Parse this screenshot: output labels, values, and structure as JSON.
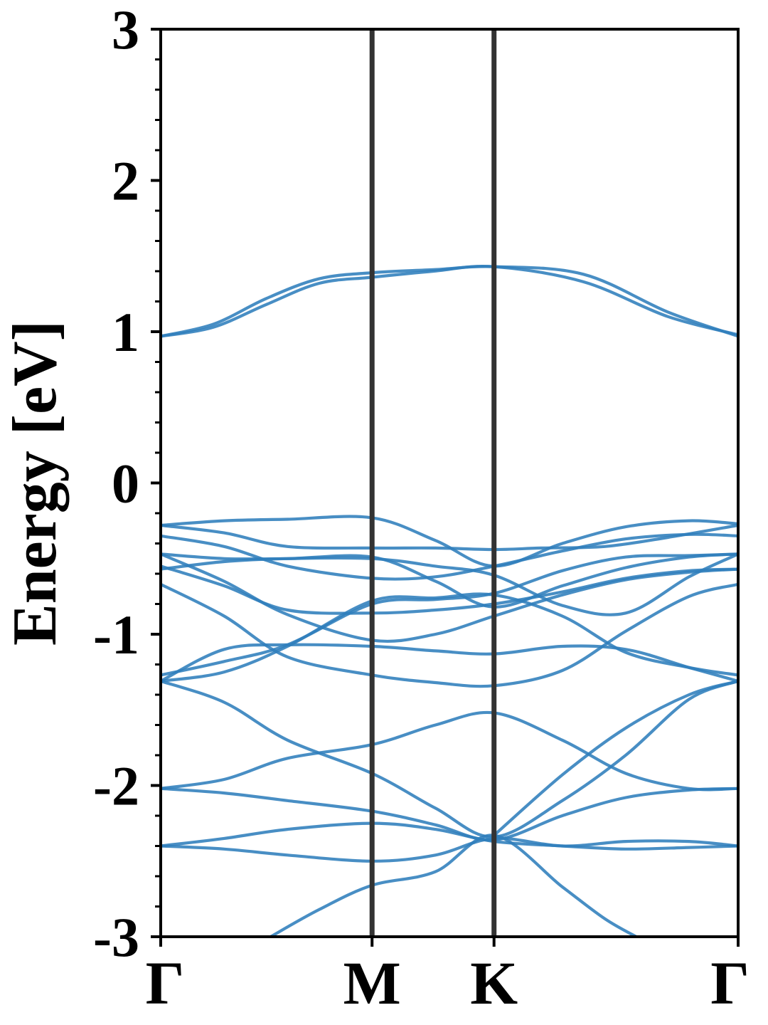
{
  "chart_data": {
    "type": "line",
    "ylabel": "Energy [eV]",
    "ylim": [
      -3,
      3
    ],
    "yticks": [
      "3",
      "2",
      "1",
      "0",
      "-1",
      "-2",
      "-3"
    ],
    "ytick_values": [
      3,
      2,
      1,
      0,
      -1,
      -2,
      -3
    ],
    "xlim": [
      0,
      2.732
    ],
    "high_symmetry_points": [
      {
        "label": "Γ",
        "x": 0
      },
      {
        "label": "M",
        "x": 1.0
      },
      {
        "label": "K",
        "x": 1.577
      },
      {
        "label": "Γ",
        "x": 2.732
      }
    ],
    "band_color": "#2f7ebc",
    "divider_color": "#333333",
    "series": [
      {
        "x": [
          0,
          0.25,
          0.5,
          0.75,
          1.0,
          1.29,
          1.577,
          2.0,
          2.4,
          2.732
        ],
        "values": [
          0.97,
          1.03,
          1.18,
          1.32,
          1.36,
          1.4,
          1.43,
          1.33,
          1.1,
          0.98
        ]
      },
      {
        "x": [
          0,
          0.25,
          0.5,
          0.75,
          1.0,
          1.29,
          1.577,
          2.0,
          2.4,
          2.732
        ],
        "values": [
          0.97,
          1.05,
          1.22,
          1.35,
          1.39,
          1.41,
          1.43,
          1.38,
          1.13,
          0.97
        ]
      },
      {
        "x": [
          0,
          0.3,
          0.6,
          1.0,
          1.3,
          1.577,
          1.9,
          2.2,
          2.5,
          2.732
        ],
        "values": [
          -0.28,
          -0.25,
          -0.24,
          -0.23,
          -0.38,
          -0.55,
          -0.4,
          -0.29,
          -0.25,
          -0.27
        ]
      },
      {
        "x": [
          0,
          0.3,
          0.6,
          1.0,
          1.3,
          1.577,
          1.8,
          2.1,
          2.4,
          2.732
        ],
        "values": [
          -0.28,
          -0.33,
          -0.42,
          -0.43,
          -0.43,
          -0.44,
          -0.43,
          -0.42,
          -0.36,
          -0.28
        ]
      },
      {
        "x": [
          0,
          0.3,
          0.6,
          1.0,
          1.3,
          1.577,
          1.9,
          2.2,
          2.5,
          2.732
        ],
        "values": [
          -0.35,
          -0.42,
          -0.55,
          -0.63,
          -0.62,
          -0.55,
          -0.45,
          -0.37,
          -0.34,
          -0.35
        ]
      },
      {
        "x": [
          0,
          0.3,
          0.6,
          1.0,
          1.3,
          1.577,
          1.9,
          2.2,
          2.5,
          2.732
        ],
        "values": [
          -0.47,
          -0.5,
          -0.5,
          -0.49,
          -0.65,
          -0.82,
          -0.68,
          -0.56,
          -0.49,
          -0.47
        ]
      },
      {
        "x": [
          0,
          0.3,
          0.6,
          1.0,
          1.3,
          1.577,
          1.9,
          2.2,
          2.5,
          2.732
        ],
        "values": [
          -0.57,
          -0.52,
          -0.5,
          -0.5,
          -0.55,
          -0.61,
          -0.81,
          -0.86,
          -0.62,
          -0.47
        ]
      },
      {
        "x": [
          0,
          0.3,
          0.6,
          1.0,
          1.3,
          1.577,
          1.9,
          2.2,
          2.5,
          2.732
        ],
        "values": [
          -0.55,
          -0.68,
          -0.84,
          -0.86,
          -0.84,
          -0.8,
          -0.72,
          -0.63,
          -0.58,
          -0.57
        ]
      },
      {
        "x": [
          0,
          0.3,
          0.6,
          1.0,
          1.3,
          1.577,
          1.9,
          2.2,
          2.5,
          2.732
        ],
        "values": [
          -0.47,
          -0.65,
          -0.87,
          -1.04,
          -1.0,
          -0.88,
          -0.74,
          -0.64,
          -0.59,
          -0.57
        ]
      },
      {
        "x": [
          0,
          0.3,
          0.6,
          1.0,
          1.3,
          1.577,
          1.9,
          2.2,
          2.5,
          2.732
        ],
        "values": [
          -1.27,
          -1.18,
          -1.07,
          -0.8,
          -0.77,
          -0.73,
          -0.58,
          -0.49,
          -0.48,
          -0.47
        ]
      },
      {
        "x": [
          0,
          0.3,
          0.6,
          1.0,
          1.3,
          1.577,
          1.9,
          2.2,
          2.5,
          2.732
        ],
        "values": [
          -1.31,
          -1.25,
          -1.08,
          -0.78,
          -0.76,
          -0.74,
          -0.88,
          -1.12,
          -1.22,
          -1.27
        ]
      },
      {
        "x": [
          0,
          0.3,
          0.6,
          1.0,
          1.3,
          1.577,
          1.9,
          2.2,
          2.5,
          2.732
        ],
        "values": [
          -0.67,
          -0.88,
          -1.15,
          -1.27,
          -1.32,
          -1.34,
          -1.24,
          -0.98,
          -0.75,
          -0.67
        ]
      },
      {
        "x": [
          0,
          0.3,
          0.6,
          1.0,
          1.3,
          1.577,
          1.9,
          2.2,
          2.5,
          2.732
        ],
        "values": [
          -1.31,
          -1.1,
          -1.07,
          -1.08,
          -1.11,
          -1.13,
          -1.08,
          -1.1,
          -1.22,
          -1.31
        ]
      },
      {
        "x": [
          0,
          0.3,
          0.6,
          1.0,
          1.3,
          1.577,
          1.9,
          2.2,
          2.5,
          2.732
        ],
        "values": [
          -1.31,
          -1.45,
          -1.7,
          -1.92,
          -2.15,
          -2.34,
          -2.1,
          -1.8,
          -1.43,
          -1.31
        ]
      },
      {
        "x": [
          0,
          0.3,
          0.6,
          1.0,
          1.3,
          1.577,
          1.9,
          2.2,
          2.5,
          2.732
        ],
        "values": [
          -2.02,
          -1.96,
          -1.82,
          -1.73,
          -1.6,
          -1.52,
          -1.7,
          -1.92,
          -2.02,
          -2.02
        ]
      },
      {
        "x": [
          0,
          0.3,
          0.6,
          1.0,
          1.3,
          1.577,
          1.9,
          2.2,
          2.5,
          2.732
        ],
        "values": [
          -2.02,
          -2.05,
          -2.1,
          -2.17,
          -2.26,
          -2.36,
          -2.2,
          -2.08,
          -2.03,
          -2.02
        ]
      },
      {
        "x": [
          0,
          0.3,
          0.6,
          1.0,
          1.3,
          1.577,
          1.9,
          2.2,
          2.5,
          2.732
        ],
        "values": [
          -2.4,
          -2.35,
          -2.29,
          -2.25,
          -2.29,
          -2.37,
          -2.4,
          -2.42,
          -2.41,
          -2.4
        ]
      },
      {
        "x": [
          0,
          0.3,
          0.6,
          1.0,
          1.3,
          1.577,
          1.9,
          2.2,
          2.5,
          2.732
        ],
        "values": [
          -2.4,
          -2.42,
          -2.46,
          -2.5,
          -2.46,
          -2.35,
          -2.4,
          -2.37,
          -2.37,
          -2.4
        ]
      },
      {
        "x": [
          0.52,
          0.75,
          1.0,
          1.3,
          1.577,
          1.9,
          2.1,
          2.25
        ],
        "values": [
          -3.0,
          -2.82,
          -2.66,
          -2.57,
          -2.33,
          -2.67,
          -2.88,
          -3.0
        ]
      },
      {
        "x": [
          1.577,
          1.9,
          2.2,
          2.5,
          2.732
        ],
        "values": [
          -2.33,
          -1.93,
          -1.62,
          -1.4,
          -1.31
        ]
      }
    ]
  }
}
